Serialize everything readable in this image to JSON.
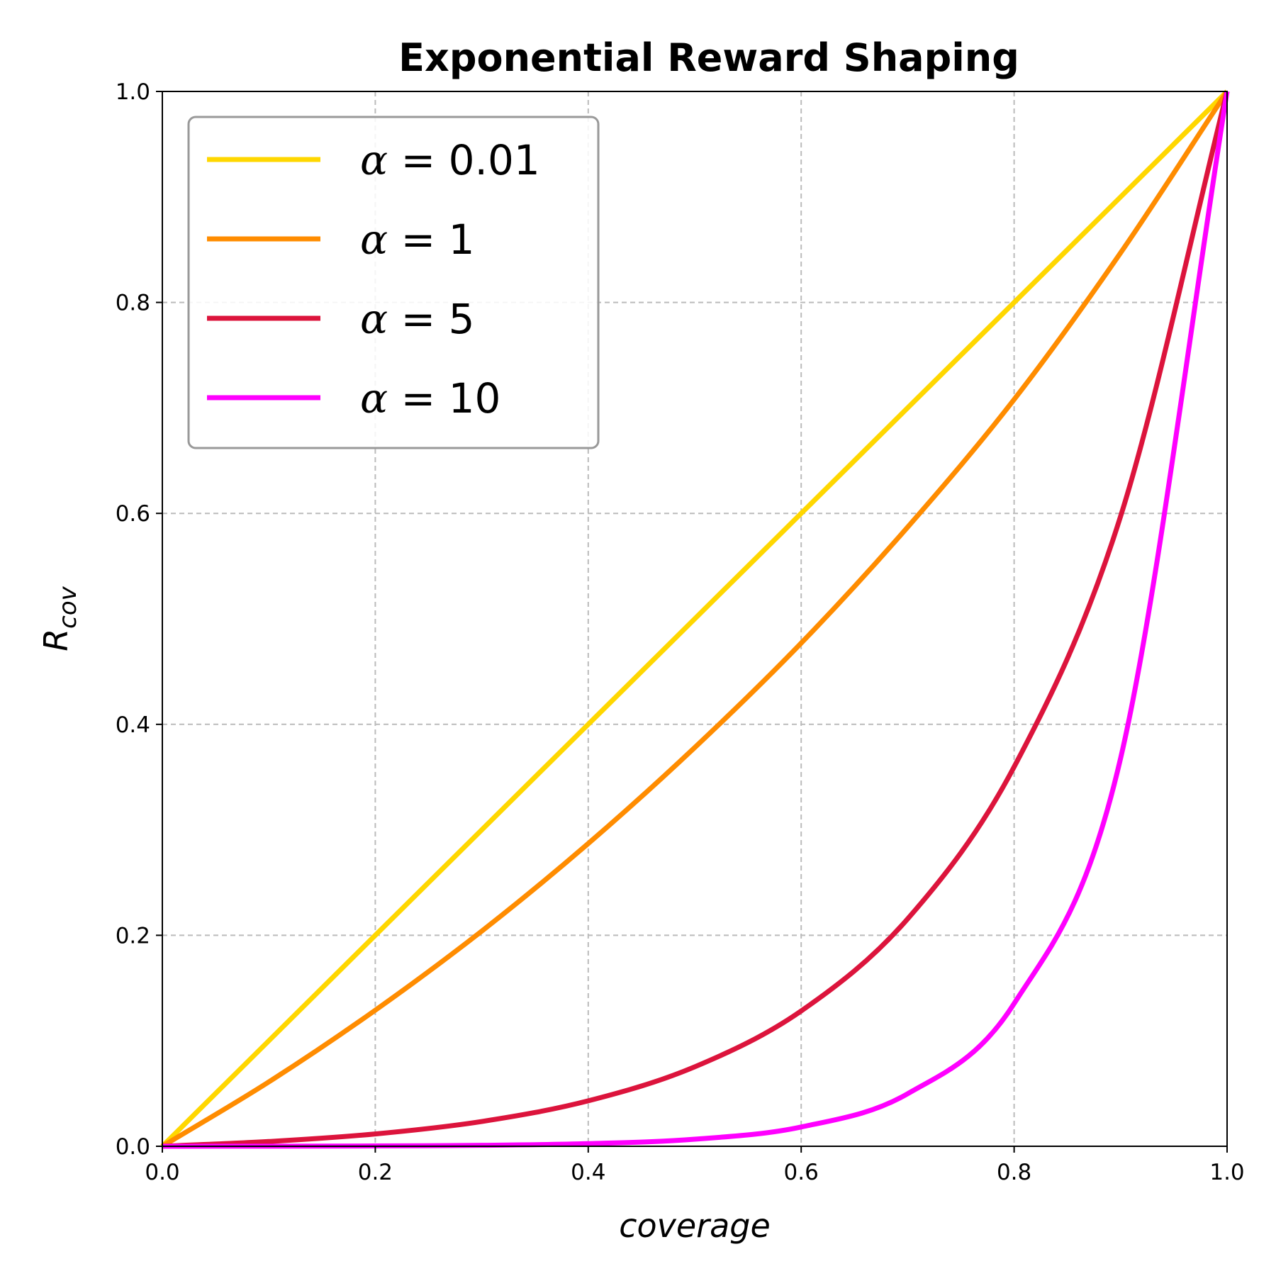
{
  "chart_data": {
    "type": "line",
    "title": "Exponential Reward Shaping",
    "xlabel": "coverage",
    "ylabel": {
      "base": "R",
      "sub": "cov"
    },
    "xlim": [
      0,
      1
    ],
    "ylim": [
      0,
      1
    ],
    "xticks": [
      "0.0",
      "0.2",
      "0.4",
      "0.6",
      "0.8",
      "1.0"
    ],
    "yticks": [
      "0.0",
      "0.2",
      "0.4",
      "0.6",
      "0.8",
      "1.0"
    ],
    "grid": true,
    "legend_position": "upper-left",
    "series": [
      {
        "name": "α = 0.01",
        "color": "#FFD700",
        "x": [
          0,
          0.1,
          0.2,
          0.3,
          0.4,
          0.5,
          0.6,
          0.7,
          0.8,
          0.9,
          1.0
        ],
        "y": [
          0,
          0.1,
          0.2,
          0.3,
          0.4,
          0.5,
          0.6,
          0.7,
          0.8,
          0.9,
          1.0
        ]
      },
      {
        "name": "α = 1",
        "color": "#FF8C00",
        "x": [
          0,
          0.1,
          0.2,
          0.3,
          0.4,
          0.5,
          0.6,
          0.7,
          0.8,
          0.9,
          1.0
        ],
        "y": [
          0,
          0.061,
          0.129,
          0.204,
          0.287,
          0.378,
          0.477,
          0.587,
          0.708,
          0.847,
          1.0
        ]
      },
      {
        "name": "α = 5",
        "color": "#DC143C",
        "x": [
          0,
          0.1,
          0.2,
          0.3,
          0.4,
          0.5,
          0.6,
          0.7,
          0.8,
          0.9,
          1.0
        ],
        "y": [
          0,
          0.0045,
          0.0117,
          0.0235,
          0.0431,
          0.0753,
          0.1283,
          0.2156,
          0.3597,
          0.5973,
          1.0
        ]
      },
      {
        "name": "α = 10",
        "color": "#FF00FF",
        "x": [
          0,
          0.1,
          0.2,
          0.3,
          0.4,
          0.5,
          0.6,
          0.7,
          0.8,
          0.9,
          1.0
        ],
        "y": [
          0,
          0.0001,
          0.0003,
          0.0009,
          0.0025,
          0.0067,
          0.0183,
          0.0498,
          0.1353,
          0.3679,
          1.0
        ]
      }
    ]
  }
}
